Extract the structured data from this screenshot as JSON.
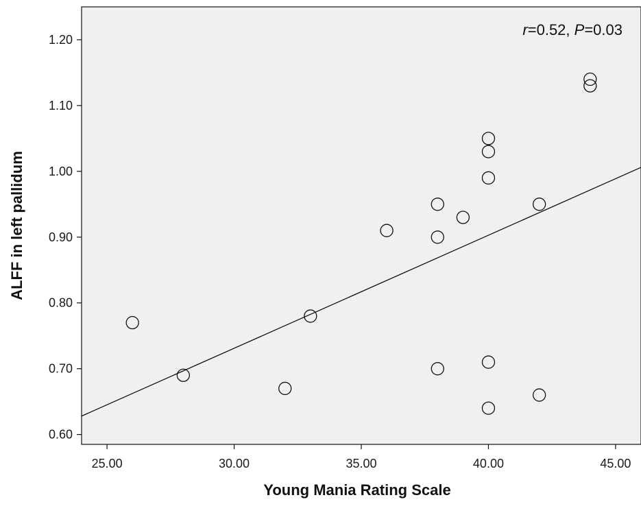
{
  "chart_data": {
    "type": "scatter",
    "xlabel": "Young Mania Rating Scale",
    "ylabel": "ALFF in left pallidum",
    "xlim": [
      24,
      46
    ],
    "ylim": [
      0.585,
      1.25
    ],
    "x_ticks": [
      25,
      30,
      35,
      40,
      45
    ],
    "x_tick_labels": [
      "25.00",
      "30.00",
      "35.00",
      "40.00",
      "45.00"
    ],
    "y_ticks": [
      0.6,
      0.7,
      0.8,
      0.9,
      1.0,
      1.1,
      1.2
    ],
    "y_tick_labels": [
      "0.60",
      "0.70",
      "0.80",
      "0.90",
      "1.00",
      "1.10",
      "1.20"
    ],
    "points": [
      {
        "x": 26,
        "y": 0.77
      },
      {
        "x": 28,
        "y": 0.69
      },
      {
        "x": 32,
        "y": 0.67
      },
      {
        "x": 33,
        "y": 0.78
      },
      {
        "x": 36,
        "y": 0.91
      },
      {
        "x": 38,
        "y": 0.95
      },
      {
        "x": 38,
        "y": 0.9
      },
      {
        "x": 38,
        "y": 0.7
      },
      {
        "x": 39,
        "y": 0.93
      },
      {
        "x": 40,
        "y": 1.05
      },
      {
        "x": 40,
        "y": 1.03
      },
      {
        "x": 40,
        "y": 0.99
      },
      {
        "x": 40,
        "y": 0.71
      },
      {
        "x": 40,
        "y": 0.64
      },
      {
        "x": 42,
        "y": 0.95
      },
      {
        "x": 42,
        "y": 0.66
      },
      {
        "x": 44,
        "y": 1.14
      },
      {
        "x": 44,
        "y": 1.13
      }
    ],
    "fit_line": {
      "x": [
        24,
        46
      ],
      "y": [
        0.628,
        1.006
      ]
    },
    "annotation": {
      "r_symbol": "r",
      "r_text": "=0.52, ",
      "p_symbol": "P",
      "p_text": "=0.03"
    },
    "colors": {
      "plot_background": "#f0f0f0",
      "marker_stroke": "#111111",
      "line": "#111111",
      "axis": "#111111"
    },
    "grid": false,
    "legend": "none"
  }
}
